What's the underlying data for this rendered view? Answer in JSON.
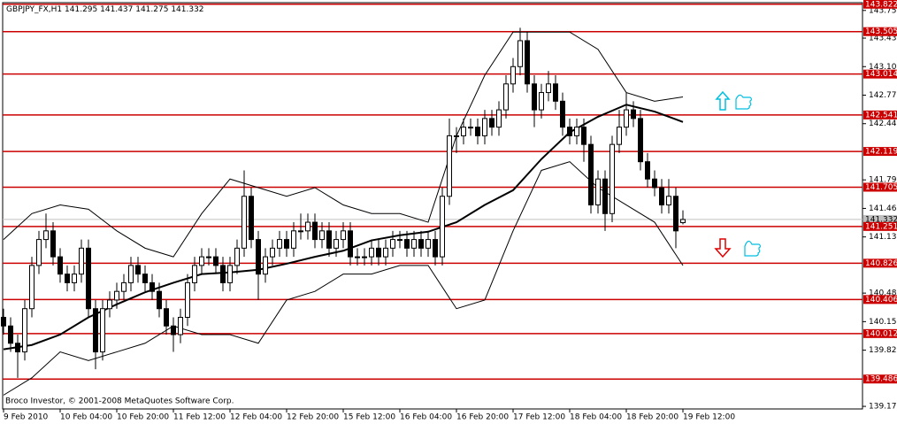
{
  "chart_data": {
    "type": "candlestick",
    "symbol": "GBPJPY_FX,H1",
    "copyright": "Broco Investor, © 2001-2008 MetaQuotes Software Corp.",
    "ylim": [
      139.14,
      143.84
    ],
    "yticks": [
      {
        "value": 143.75,
        "label": "143.750"
      },
      {
        "value": 143.43,
        "label": "143.430"
      },
      {
        "value": 143.1,
        "label": "143.100"
      },
      {
        "value": 142.77,
        "label": "142.770"
      },
      {
        "value": 142.44,
        "label": "142.440"
      },
      {
        "value": 141.79,
        "label": "141.790"
      },
      {
        "value": 141.46,
        "label": "141.460"
      },
      {
        "value": 141.13,
        "label": "141.130"
      },
      {
        "value": 140.48,
        "label": "140.480"
      },
      {
        "value": 140.15,
        "label": "140.150"
      },
      {
        "value": 139.82,
        "label": "139.820"
      },
      {
        "value": 139.17,
        "label": "139.170"
      }
    ],
    "xticks": [
      {
        "value": 0,
        "label": "9 Feb 2010"
      },
      {
        "value": 8,
        "label": "10 Feb 04:00"
      },
      {
        "value": 16,
        "label": "10 Feb 20:00"
      },
      {
        "value": 24,
        "label": "11 Feb 12:00"
      },
      {
        "value": 32,
        "label": "12 Feb 04:00"
      },
      {
        "value": 40,
        "label": "12 Feb 20:00"
      },
      {
        "value": 48,
        "label": "15 Feb 12:00"
      },
      {
        "value": 56,
        "label": "16 Feb 04:00"
      },
      {
        "value": 64,
        "label": "16 Feb 20:00"
      },
      {
        "value": 72,
        "label": "17 Feb 12:00"
      },
      {
        "value": 80,
        "label": "18 Feb 04:00"
      },
      {
        "value": 88,
        "label": "18 Feb 20:00"
      },
      {
        "value": 96,
        "label": "19 Feb 12:00"
      }
    ],
    "open": [
      140.2,
      140.1,
      139.9,
      139.8,
      140.3,
      140.8,
      141.1,
      141.2,
      140.9,
      140.7,
      140.6,
      140.7,
      141.0,
      140.3,
      139.8,
      140.3,
      140.4,
      140.5,
      140.6,
      140.8,
      140.7,
      140.6,
      140.5,
      140.3,
      140.1,
      140.0,
      140.2,
      140.6,
      140.8,
      140.9,
      140.9,
      140.8,
      140.6,
      140.8,
      141.0,
      141.6,
      141.1,
      140.7,
      140.9,
      141.0,
      141.1,
      141.0,
      141.2,
      141.2,
      141.3,
      141.1,
      141.2,
      141.0,
      141.1,
      141.2,
      140.9,
      140.9,
      140.9,
      141.0,
      140.9,
      141.0,
      141.1,
      141.1,
      141.0,
      141.1,
      141.0,
      141.1,
      140.9,
      141.6,
      142.3,
      142.3,
      142.4,
      142.4,
      142.3,
      142.5,
      142.4,
      142.6,
      142.9,
      143.1,
      143.4,
      142.9,
      142.6,
      142.8,
      142.9,
      142.7,
      142.4,
      142.3,
      142.4,
      142.2,
      141.5,
      141.8,
      141.4,
      142.2,
      142.4,
      142.6,
      142.5,
      142.0,
      141.8,
      141.7,
      141.5,
      141.6,
      141.295
    ],
    "high": [
      140.3,
      140.2,
      140.0,
      140.4,
      140.9,
      141.2,
      141.4,
      141.3,
      141.0,
      140.8,
      140.8,
      141.1,
      141.1,
      140.4,
      140.4,
      140.5,
      140.6,
      140.7,
      140.9,
      140.9,
      140.8,
      140.7,
      140.6,
      140.4,
      140.2,
      140.3,
      140.7,
      140.9,
      141.0,
      141.0,
      141.0,
      140.9,
      140.9,
      141.1,
      141.9,
      141.7,
      141.2,
      141.0,
      141.1,
      141.2,
      141.2,
      141.3,
      141.4,
      141.4,
      141.4,
      141.3,
      141.3,
      141.2,
      141.3,
      141.3,
      141.0,
      141.0,
      141.1,
      141.1,
      141.1,
      141.2,
      141.2,
      141.2,
      141.2,
      141.2,
      141.2,
      141.2,
      141.7,
      142.5,
      142.4,
      142.5,
      142.5,
      142.5,
      142.6,
      142.6,
      142.7,
      143.0,
      143.2,
      143.55,
      143.5,
      143.0,
      142.9,
      143.05,
      143.0,
      142.8,
      142.5,
      142.5,
      142.5,
      142.3,
      141.9,
      141.9,
      142.3,
      142.6,
      142.8,
      142.7,
      142.6,
      142.1,
      141.9,
      141.8,
      141.8,
      141.7,
      141.437
    ],
    "low": [
      140.0,
      139.8,
      139.5,
      139.7,
      140.2,
      140.7,
      141.0,
      140.8,
      140.6,
      140.5,
      140.5,
      140.6,
      140.2,
      139.6,
      139.7,
      140.2,
      140.3,
      140.4,
      140.5,
      140.6,
      140.5,
      140.4,
      140.2,
      140.0,
      139.8,
      139.9,
      140.1,
      140.5,
      140.7,
      140.8,
      140.7,
      140.5,
      140.5,
      140.7,
      140.9,
      141.0,
      140.4,
      140.6,
      140.8,
      140.9,
      140.9,
      140.9,
      141.1,
      141.1,
      141.0,
      141.0,
      140.9,
      140.9,
      141.0,
      140.8,
      140.8,
      140.8,
      140.8,
      140.8,
      140.8,
      140.9,
      141.0,
      140.9,
      140.9,
      140.9,
      140.9,
      140.8,
      140.8,
      141.5,
      142.1,
      142.2,
      142.3,
      142.2,
      142.2,
      142.3,
      142.3,
      142.5,
      142.8,
      143.0,
      142.8,
      142.4,
      142.5,
      142.7,
      142.6,
      142.3,
      142.2,
      142.2,
      142.0,
      141.4,
      141.4,
      141.2,
      141.3,
      142.1,
      142.3,
      142.4,
      141.9,
      141.7,
      141.6,
      141.4,
      141.4,
      141.0,
      141.275
    ],
    "close": [
      140.1,
      139.9,
      139.8,
      140.3,
      140.8,
      141.1,
      141.2,
      140.9,
      140.7,
      140.6,
      140.7,
      141.0,
      140.3,
      139.8,
      140.3,
      140.4,
      140.5,
      140.6,
      140.8,
      140.7,
      140.6,
      140.5,
      140.3,
      140.1,
      140.0,
      140.2,
      140.6,
      140.8,
      140.9,
      140.9,
      140.8,
      140.6,
      140.8,
      141.0,
      141.6,
      141.1,
      140.7,
      140.9,
      141.0,
      141.1,
      141.0,
      141.2,
      141.2,
      141.3,
      141.1,
      141.2,
      141.0,
      141.1,
      141.2,
      140.9,
      140.9,
      140.9,
      141.0,
      140.9,
      141.0,
      141.1,
      141.1,
      141.0,
      141.1,
      141.0,
      141.1,
      140.9,
      141.6,
      142.3,
      142.3,
      142.4,
      142.4,
      142.3,
      142.5,
      142.4,
      142.6,
      142.9,
      143.1,
      143.4,
      142.9,
      142.6,
      142.8,
      142.9,
      142.7,
      142.4,
      142.3,
      142.4,
      142.2,
      141.5,
      141.8,
      141.4,
      142.2,
      142.4,
      142.6,
      142.5,
      142.0,
      141.8,
      141.7,
      141.5,
      141.6,
      141.2,
      141.332
    ],
    "overlay_x": [
      0,
      4,
      8,
      12,
      16,
      20,
      24,
      28,
      32,
      36,
      40,
      44,
      48,
      52,
      56,
      60,
      64,
      68,
      72,
      76,
      80,
      84,
      88,
      92,
      96
    ],
    "overlays": [
      {
        "color": "#000000",
        "width": 2,
        "values": [
          139.83,
          139.88,
          140.0,
          140.2,
          140.35,
          140.49,
          140.6,
          140.7,
          140.72,
          140.75,
          140.82,
          140.9,
          140.97,
          141.09,
          141.15,
          141.19,
          141.3,
          141.5,
          141.67,
          142.03,
          142.34,
          142.52,
          142.66,
          142.58,
          142.46
        ]
      },
      {
        "color": "#000000",
        "width": 1,
        "values": [
          141.1,
          141.4,
          141.5,
          141.45,
          141.2,
          141.0,
          140.9,
          141.4,
          141.8,
          141.7,
          141.6,
          141.7,
          141.5,
          141.4,
          141.4,
          141.3,
          142.3,
          143.0,
          143.5,
          143.5,
          143.5,
          143.3,
          142.8,
          142.7,
          142.75
        ]
      },
      {
        "color": "#000000",
        "width": 1,
        "values": [
          139.3,
          139.5,
          139.8,
          139.7,
          139.8,
          139.9,
          140.1,
          140.0,
          140.0,
          139.9,
          140.4,
          140.5,
          140.7,
          140.7,
          140.8,
          140.8,
          140.3,
          140.4,
          141.2,
          141.9,
          142.0,
          141.7,
          141.5,
          141.3,
          140.8
        ]
      }
    ],
    "levels": [
      143.822,
      143.505,
      143.014,
      142.541,
      142.119,
      141.705,
      141.251,
      140.826,
      140.406,
      140.012,
      139.486
    ],
    "level_color": "#cc0000",
    "bid": 141.332
  }
}
